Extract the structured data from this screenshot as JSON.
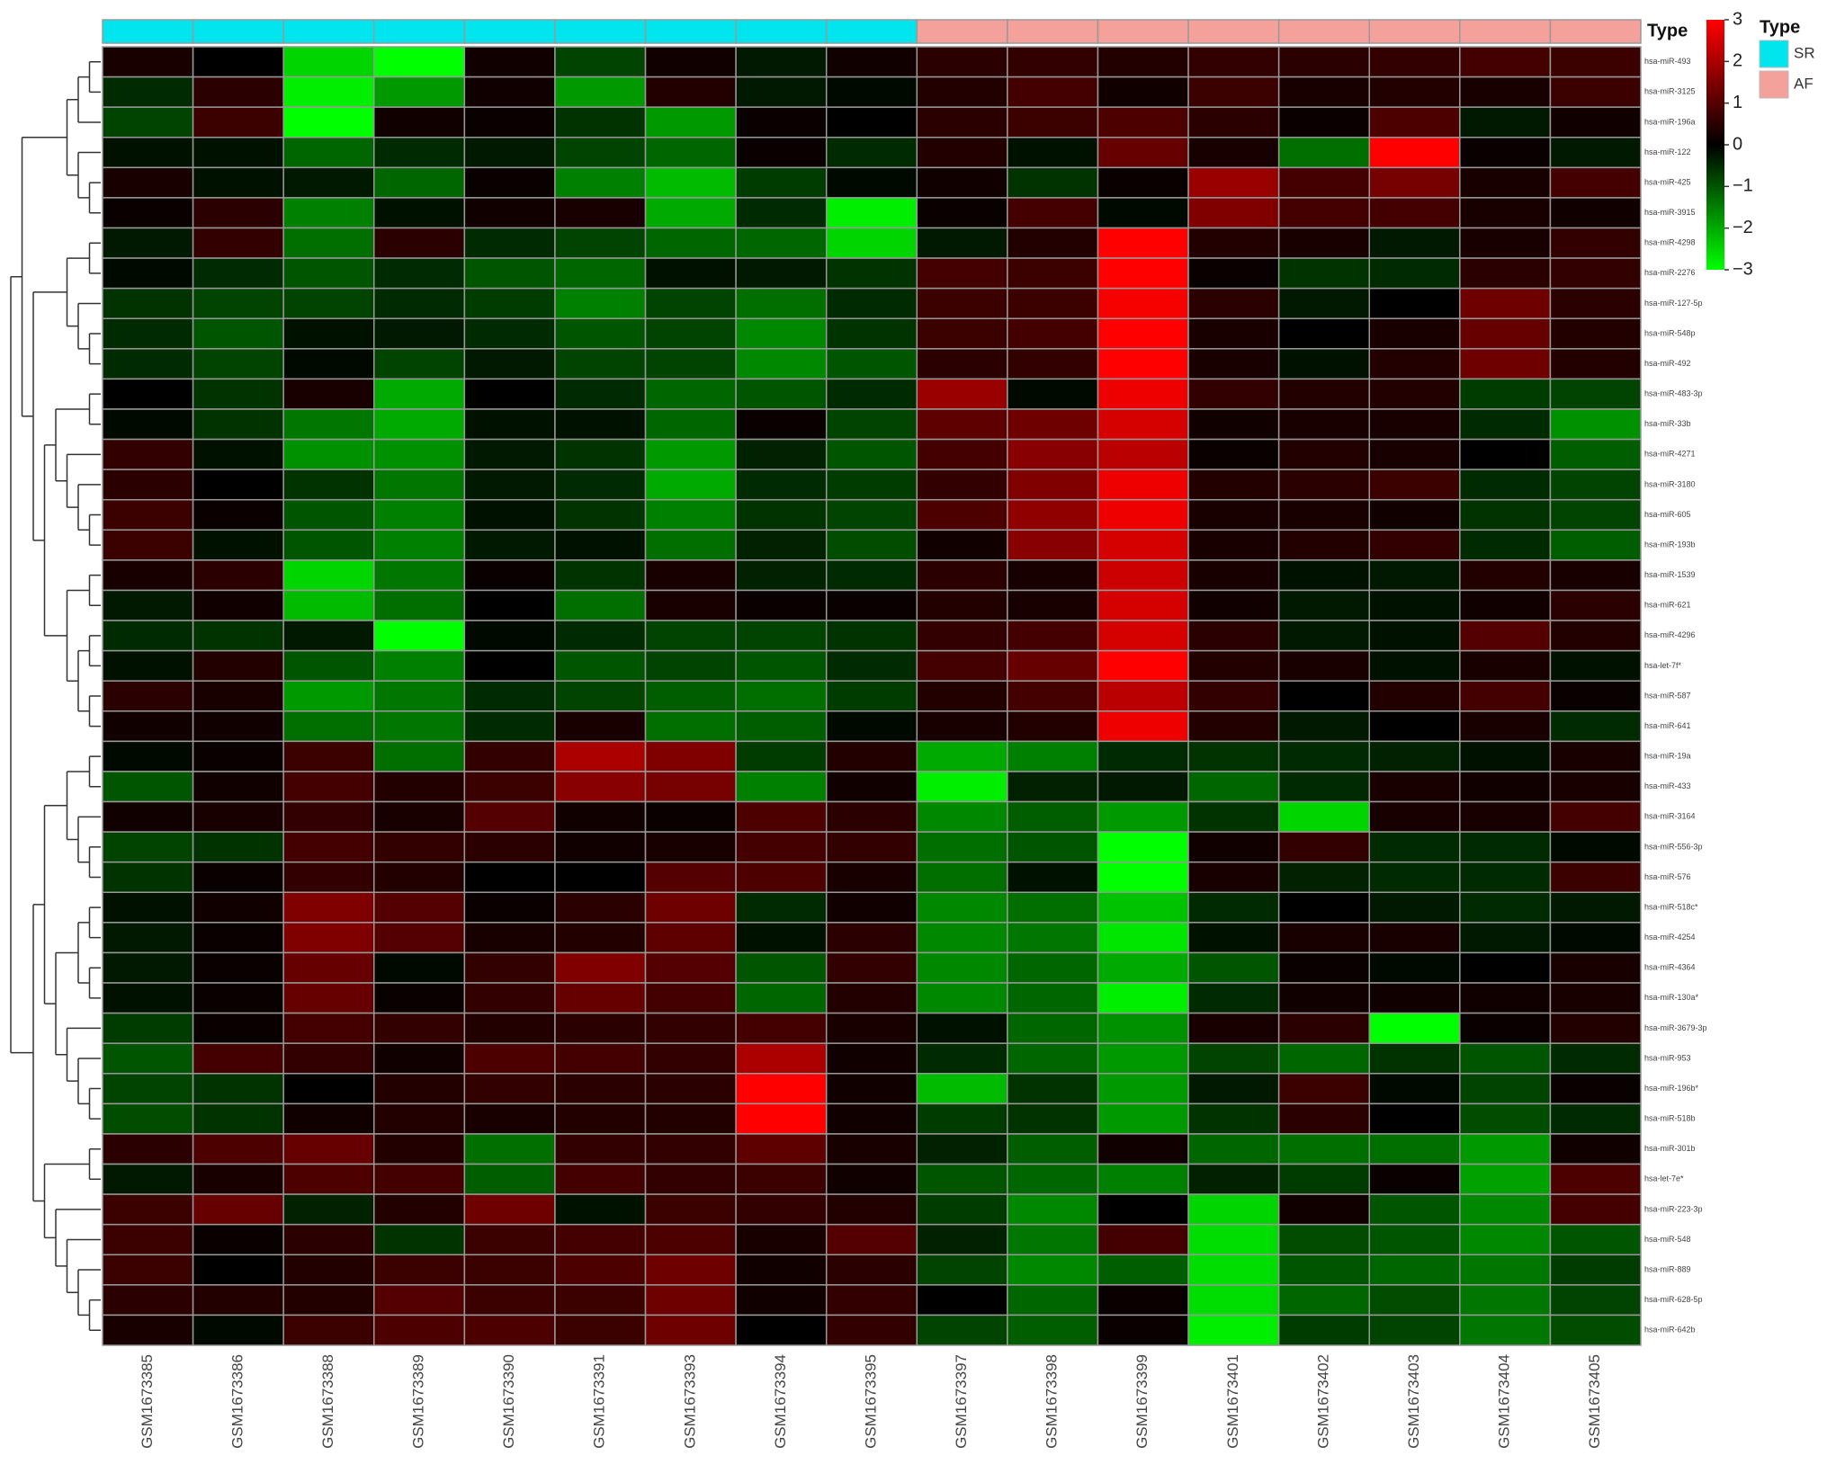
{
  "chart_data": {
    "type": "heatmap",
    "annotation_label": "Type",
    "legend_title": "Type",
    "groups": [
      {
        "name": "SR",
        "color": "#00e5ee"
      },
      {
        "name": "AF",
        "color": "#f4a09b"
      }
    ],
    "column_groups": [
      0,
      0,
      0,
      0,
      0,
      0,
      0,
      0,
      0,
      1,
      1,
      1,
      1,
      1,
      1,
      1,
      1
    ],
    "columns": [
      "GSM1673385",
      "GSM1673386",
      "GSM1673388",
      "GSM1673389",
      "GSM1673390",
      "GSM1673391",
      "GSM1673393",
      "GSM1673394",
      "GSM1673395",
      "GSM1673397",
      "GSM1673398",
      "GSM1673399",
      "GSM1673401",
      "GSM1673402",
      "GSM1673403",
      "GSM1673404",
      "GSM1673405"
    ],
    "rows": [
      "hsa-miR-493",
      "hsa-miR-3125",
      "hsa-miR-196a",
      "hsa-miR-122",
      "hsa-miR-425",
      "hsa-miR-3915",
      "hsa-miR-4298",
      "hsa-miR-2276",
      "hsa-miR-127-5p",
      "hsa-miR-548p",
      "hsa-miR-492",
      "hsa-miR-483-3p",
      "hsa-miR-33b",
      "hsa-miR-4271",
      "hsa-miR-3180",
      "hsa-miR-605",
      "hsa-miR-193b",
      "hsa-miR-1539",
      "hsa-miR-621",
      "hsa-miR-4296",
      "hsa-let-7f*",
      "hsa-miR-587",
      "hsa-miR-641",
      "hsa-miR-19a",
      "hsa-miR-433",
      "hsa-miR-3164",
      "hsa-miR-556-3p",
      "hsa-miR-576",
      "hsa-miR-518c*",
      "hsa-miR-4254",
      "hsa-miR-4364",
      "hsa-miR-130a*",
      "hsa-miR-3679-3p",
      "hsa-miR-953",
      "hsa-miR-196b*",
      "hsa-miR-518b",
      "hsa-miR-301b",
      "hsa-let-7e*",
      "hsa-miR-223-3p",
      "hsa-miR-548",
      "hsa-miR-889",
      "hsa-miR-628-5p",
      "hsa-miR-642b"
    ],
    "values": [
      [
        0.3,
        0,
        -2.5,
        -3,
        0.2,
        -0.8,
        0.2,
        -0.3,
        0.2,
        0.5,
        0.6,
        0.4,
        0.6,
        0.5,
        0.6,
        0.8,
        0.7
      ],
      [
        -0.5,
        0.5,
        -2.8,
        -1.8,
        0.2,
        -1.8,
        0.4,
        -0.3,
        -0.1,
        0.4,
        0.8,
        0.2,
        0.7,
        0.3,
        0.4,
        0.3,
        0.7
      ],
      [
        -0.8,
        0.7,
        -3,
        0.2,
        0.1,
        -0.6,
        -1.8,
        0.1,
        0,
        0.5,
        0.7,
        0.9,
        0.5,
        0.1,
        0.9,
        -0.3,
        0.2
      ],
      [
        -0.2,
        -0.2,
        -1.2,
        -0.5,
        -0.3,
        -0.8,
        -1.2,
        0.1,
        -0.5,
        0.4,
        -0.2,
        1.2,
        0.3,
        -1.3,
        3,
        0.1,
        -0.3
      ],
      [
        0.3,
        -0.2,
        -0.3,
        -1.2,
        0.1,
        -1.5,
        -2.2,
        -0.7,
        -0.1,
        0.2,
        -0.6,
        0.1,
        1.8,
        0.8,
        1.4,
        0.3,
        0.8
      ],
      [
        0.1,
        0.5,
        -1.5,
        -0.2,
        0.2,
        0.3,
        -2,
        -0.5,
        -2.8,
        0.1,
        0.8,
        -0.1,
        1.5,
        0.8,
        0.8,
        0.3,
        0.2
      ],
      [
        -0.3,
        0.6,
        -1.3,
        0.5,
        -0.5,
        -0.8,
        -1.2,
        -1.2,
        -2.5,
        -0.3,
        0.4,
        3,
        0.4,
        0.3,
        -0.3,
        0.3,
        0.6
      ],
      [
        -0.1,
        -0.5,
        -1,
        -0.5,
        -1,
        -1.2,
        -0.2,
        -0.3,
        -0.6,
        0.8,
        0.7,
        3,
        0.1,
        -0.6,
        -0.5,
        0.5,
        0.6
      ],
      [
        -0.6,
        -0.8,
        -0.8,
        -0.5,
        -0.7,
        -1.5,
        -0.8,
        -1.3,
        -0.5,
        0.7,
        0.7,
        2.9,
        0.5,
        -0.3,
        0,
        1.3,
        0.5
      ],
      [
        -0.5,
        -1,
        -0.2,
        -0.3,
        -0.5,
        -1,
        -0.8,
        -1.6,
        -0.6,
        0.7,
        0.8,
        3,
        0.3,
        0,
        0.3,
        1.2,
        0.4
      ],
      [
        -0.5,
        -0.8,
        -0.1,
        -0.8,
        -0.3,
        -0.8,
        -0.8,
        -1.6,
        -1,
        0.5,
        0.6,
        3,
        0.3,
        -0.2,
        0.4,
        1.3,
        0.4
      ],
      [
        0,
        -0.6,
        0.3,
        -2,
        0,
        -0.5,
        -1.2,
        -1,
        -0.5,
        1.8,
        -0.1,
        2.8,
        0.6,
        0.4,
        0.4,
        -0.7,
        -0.8
      ],
      [
        -0.1,
        -0.6,
        -1.4,
        -2,
        -0.2,
        -0.2,
        -1.2,
        0.1,
        -0.8,
        1.1,
        1.3,
        2.5,
        0.2,
        0.3,
        0.3,
        -0.5,
        -1.7
      ],
      [
        0.6,
        -0.2,
        -1.7,
        -1.7,
        -0.3,
        -0.6,
        -1.8,
        -0.4,
        -1,
        0.8,
        1.6,
        2.2,
        0.1,
        0.4,
        0.3,
        0,
        -1.1
      ],
      [
        0.5,
        0,
        -0.6,
        -1.4,
        -0.3,
        -0.5,
        -2,
        -0.5,
        -0.7,
        0.6,
        1.5,
        2.8,
        0.4,
        0.5,
        0.7,
        -0.5,
        -0.8
      ],
      [
        0.7,
        0.1,
        -1,
        -1.5,
        -0.2,
        -0.6,
        -1.5,
        -0.6,
        -0.8,
        0.9,
        1.7,
        2.8,
        0.3,
        0.3,
        0.2,
        -0.6,
        -0.8
      ],
      [
        0.7,
        -0.2,
        -1,
        -1.5,
        -0.3,
        -0.2,
        -1.3,
        -0.4,
        -0.9,
        0.2,
        1.6,
        2.5,
        0.3,
        0.4,
        0.6,
        -0.5,
        -1.1
      ],
      [
        0.3,
        0.5,
        -2.5,
        -1.4,
        0.1,
        -0.6,
        0.3,
        -0.4,
        -0.5,
        0.5,
        0.3,
        2.4,
        0.3,
        -0.2,
        -0.3,
        0.4,
        0.3
      ],
      [
        -0.3,
        0.2,
        -2.2,
        -1.3,
        0,
        -1.3,
        0.3,
        0.1,
        0.1,
        0.4,
        0.3,
        2.5,
        0.2,
        -0.3,
        -0.2,
        0.2,
        0.5
      ],
      [
        -0.5,
        -0.6,
        -0.3,
        -3,
        -0.1,
        -0.5,
        -0.8,
        -0.8,
        -0.6,
        0.6,
        0.8,
        2.5,
        0.5,
        -0.3,
        -0.2,
        1,
        0.4
      ],
      [
        -0.2,
        0.4,
        -1,
        -1.5,
        0,
        -1,
        -0.8,
        -1,
        -0.5,
        0.8,
        1.2,
        3,
        0.4,
        0.3,
        -0.2,
        0.3,
        -0.2
      ],
      [
        0.5,
        0.3,
        -1.8,
        -1.4,
        -0.5,
        -0.8,
        -1.1,
        -1.3,
        -0.7,
        0.4,
        0.8,
        2.2,
        0.6,
        0,
        0.4,
        0.8,
        0.1
      ],
      [
        0.2,
        0.2,
        -1.3,
        -1.4,
        -0.5,
        0.3,
        -1.3,
        -1.1,
        -0.1,
        0.3,
        0.4,
        2.8,
        0.4,
        -0.3,
        0,
        0.3,
        -0.5
      ],
      [
        -0.1,
        0.1,
        0.7,
        -1.3,
        0.6,
        2,
        1.5,
        -0.7,
        0.4,
        -2,
        -1.5,
        -0.5,
        -0.6,
        -0.5,
        -0.4,
        -0.2,
        0.3
      ],
      [
        -1,
        0.2,
        0.8,
        0.4,
        0.7,
        1.6,
        1.4,
        -1.5,
        0.2,
        -2.8,
        -0.4,
        -0.3,
        -1.2,
        -0.5,
        0.3,
        0.2,
        0.3
      ],
      [
        0.2,
        0.3,
        0.6,
        0.3,
        1,
        0.2,
        0.1,
        0.9,
        0.5,
        -1.6,
        -1.1,
        -1.8,
        -0.6,
        -2.5,
        0.3,
        0.3,
        0.8
      ],
      [
        -0.8,
        -0.6,
        0.8,
        0.6,
        0.5,
        0.2,
        0.3,
        0.8,
        0.6,
        -1.3,
        -1,
        -3,
        0.2,
        0.6,
        -0.5,
        -0.5,
        -0.1
      ],
      [
        -0.6,
        0.1,
        0.6,
        0.4,
        0,
        0,
        1,
        0.9,
        0.3,
        -1.3,
        -0.2,
        -3,
        0.3,
        -0.4,
        -0.5,
        -0.5,
        0.7
      ],
      [
        -0.2,
        0.2,
        1.5,
        1,
        0.1,
        0.5,
        1.3,
        -0.5,
        0.2,
        -1.6,
        -1.3,
        -2.3,
        -0.5,
        0,
        -0.3,
        -0.5,
        -0.3
      ],
      [
        -0.3,
        0.1,
        1.5,
        1,
        0.3,
        0.4,
        1.1,
        -0.2,
        0.5,
        -1.6,
        -1.4,
        -2.7,
        -0.2,
        0.3,
        0.3,
        -0.3,
        -0.1
      ],
      [
        -0.3,
        0.1,
        1.2,
        -0.1,
        0.6,
        1.5,
        1,
        -1,
        0.6,
        -1.6,
        -1.2,
        -2,
        -1,
        0.1,
        -0.1,
        0,
        0.3
      ],
      [
        -0.2,
        0.1,
        1.2,
        0.1,
        0.6,
        1.2,
        0.8,
        -1.2,
        0.4,
        -1.6,
        -1.2,
        -2.8,
        -0.5,
        0.2,
        0.2,
        0.2,
        0.3
      ],
      [
        -0.7,
        0.1,
        0.8,
        0.6,
        0.4,
        0.5,
        0.6,
        0.8,
        0.3,
        -0.2,
        -1.2,
        -1.7,
        0.3,
        0.5,
        -3,
        0.1,
        0.4
      ],
      [
        -1,
        0.8,
        0.6,
        0.2,
        0.9,
        0.8,
        0.6,
        2,
        0.2,
        -0.5,
        -1.2,
        -1.8,
        -0.8,
        -1.2,
        -0.6,
        -1,
        -0.5
      ],
      [
        -0.8,
        -0.6,
        0,
        0.4,
        0.6,
        0.5,
        0.5,
        3,
        0.2,
        -2.2,
        -0.6,
        -1.8,
        -0.3,
        0.7,
        -0.1,
        -0.8,
        0.1
      ],
      [
        -0.9,
        -0.6,
        0.2,
        0.4,
        0.3,
        0.4,
        0.4,
        3,
        0.2,
        -0.7,
        -0.6,
        -1.8,
        -0.6,
        0.5,
        0,
        -0.9,
        -0.5
      ],
      [
        0.5,
        0.9,
        1.2,
        0.4,
        -1.3,
        0.6,
        0.6,
        1.1,
        0.3,
        -0.4,
        -1.1,
        0.2,
        -1.2,
        -1.3,
        -1.3,
        -1.8,
        0.2
      ],
      [
        -0.3,
        0.3,
        0.9,
        0.8,
        -1.1,
        0.8,
        0.6,
        0.7,
        0.2,
        -1,
        -1.2,
        -1.5,
        -0.4,
        -0.7,
        0.1,
        -1.9,
        0.9
      ],
      [
        0.7,
        1.2,
        -0.4,
        0.4,
        1.3,
        -0.2,
        0.7,
        0.6,
        0.4,
        -0.7,
        -1.6,
        0,
        -2.5,
        0.2,
        -1,
        -1.6,
        0.8
      ],
      [
        0.7,
        0.1,
        0.5,
        -0.6,
        0.7,
        0.8,
        0.9,
        0.3,
        1,
        -0.4,
        -1.4,
        0.8,
        -2.6,
        -0.9,
        -1,
        -1.6,
        -1
      ],
      [
        0.7,
        0,
        0.4,
        0.7,
        0.7,
        0.9,
        1.3,
        0.2,
        0.5,
        -0.8,
        -1.6,
        -1.1,
        -2.6,
        -1,
        -1.2,
        -1.4,
        -0.7
      ],
      [
        0.5,
        0.4,
        0.4,
        1,
        0.7,
        0.7,
        1.3,
        0.2,
        0.6,
        0,
        -1.2,
        0.1,
        -2.6,
        -1.2,
        -0.9,
        -1.4,
        -0.8
      ],
      [
        0.3,
        -0.1,
        0.7,
        0.9,
        0.9,
        0.7,
        1.3,
        0,
        0.6,
        -0.8,
        -1.1,
        0.1,
        -2.8,
        -0.7,
        -0.8,
        -1.4,
        -0.9
      ]
    ],
    "zlim": [
      -3,
      3
    ],
    "zticks": [
      3,
      2,
      1,
      0,
      {
        "value": -1,
        "label": "−1"
      },
      {
        "value": -2,
        "label": "−2"
      },
      {
        "value": -3,
        "label": "−3"
      }
    ],
    "colors": {
      "low": "#00ff00",
      "mid": "#000000",
      "high": "#ff0000"
    },
    "cell_border": "#999999"
  }
}
